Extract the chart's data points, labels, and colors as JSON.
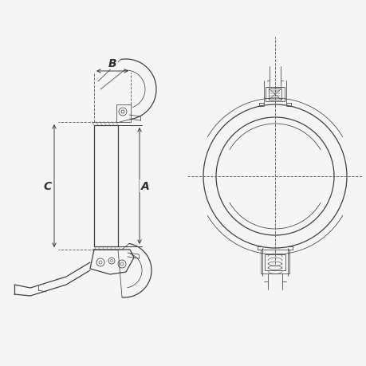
{
  "bg_color": "#f5f5f5",
  "line_color": "#404040",
  "dim_color": "#303030",
  "dashed_color": "#606060",
  "fig_width": 4.6,
  "fig_height": 4.6,
  "dpi": 100,
  "label_A": "A",
  "label_B": "B",
  "label_C": "C",
  "lw_main": 0.9,
  "lw_thin": 0.55,
  "lw_dim": 0.65,
  "lw_hatch": 0.4
}
